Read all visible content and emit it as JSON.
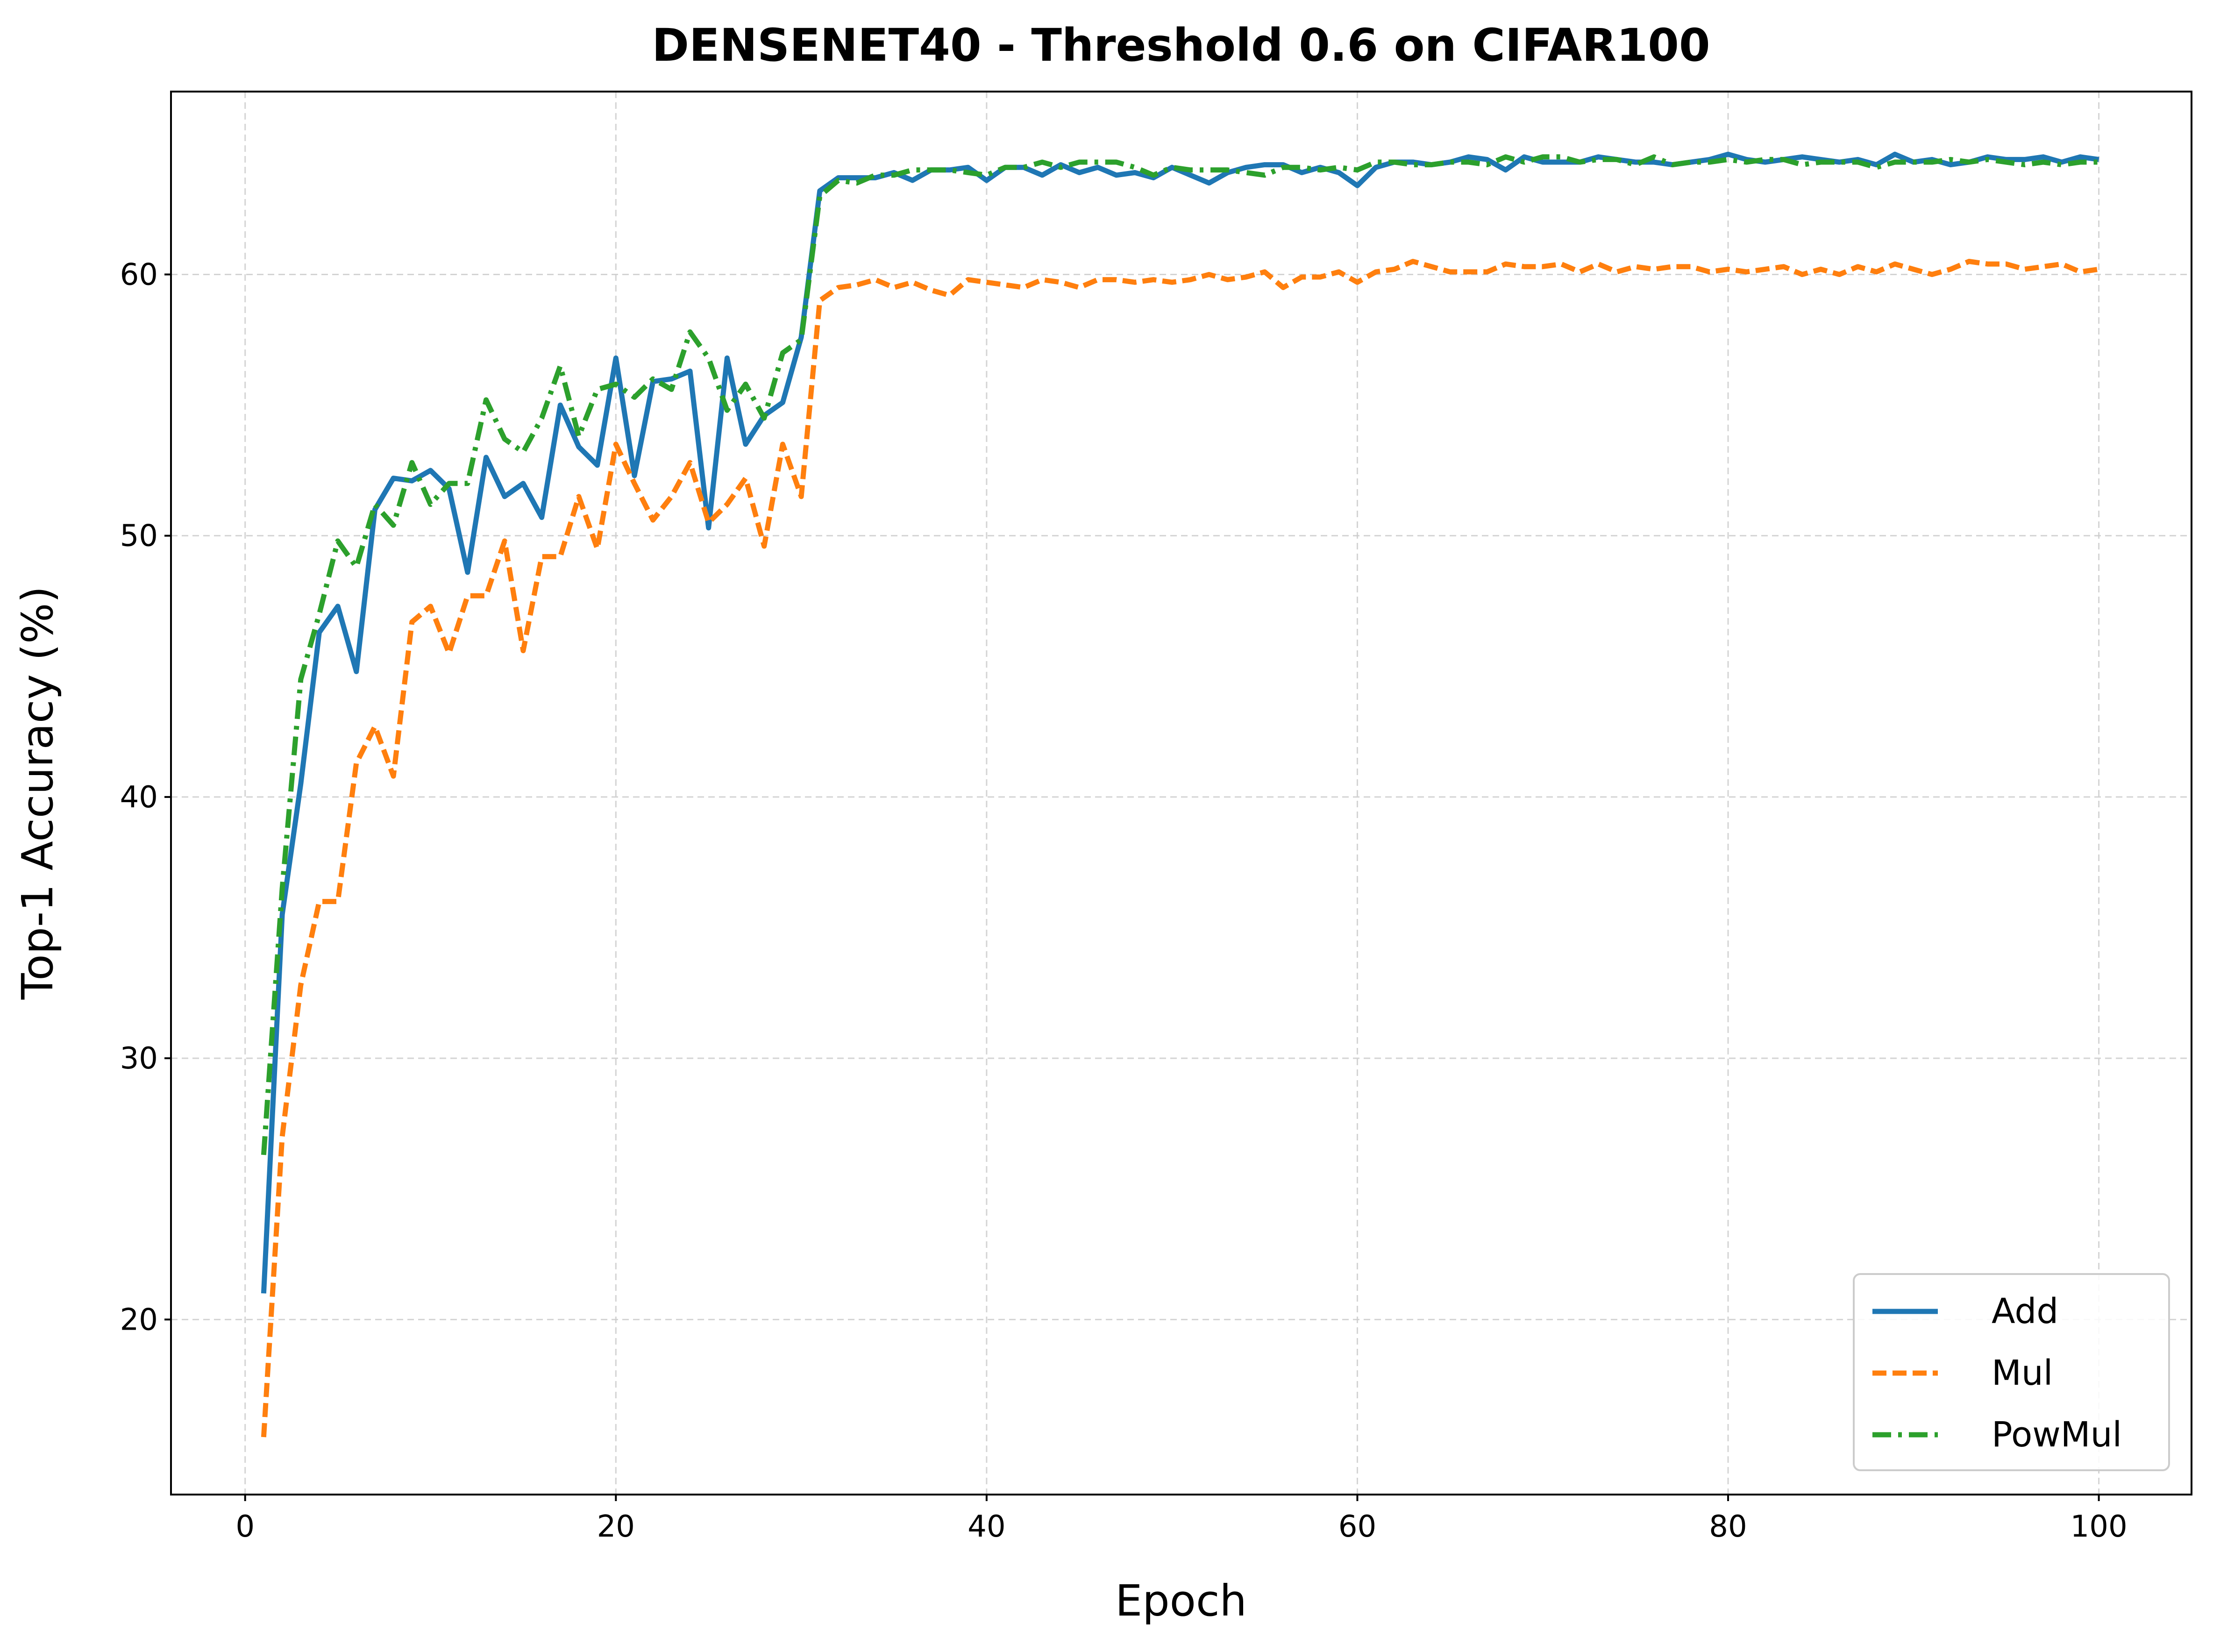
{
  "chart_data": {
    "type": "line",
    "title": "DENSENET40 - Threshold 0.6 on CIFAR100",
    "xlabel": "Epoch",
    "ylabel": "Top-1 Accuracy (%)",
    "xlim": [
      -4,
      105
    ],
    "ylim": [
      13.3,
      67.0
    ],
    "xticks": [
      0,
      20,
      40,
      60,
      80,
      100
    ],
    "yticks": [
      20,
      30,
      40,
      50,
      60
    ],
    "grid": true,
    "legend_position": "lower-right",
    "x": [
      1,
      2,
      3,
      4,
      5,
      6,
      7,
      8,
      9,
      10,
      11,
      12,
      13,
      14,
      15,
      16,
      17,
      18,
      19,
      20,
      21,
      22,
      23,
      24,
      25,
      26,
      27,
      28,
      29,
      30,
      31,
      32,
      33,
      34,
      35,
      36,
      37,
      38,
      39,
      40,
      41,
      42,
      43,
      44,
      45,
      46,
      47,
      48,
      49,
      50,
      51,
      52,
      53,
      54,
      55,
      56,
      57,
      58,
      59,
      60,
      61,
      62,
      63,
      64,
      65,
      66,
      67,
      68,
      69,
      70,
      71,
      72,
      73,
      74,
      75,
      76,
      77,
      78,
      79,
      80,
      81,
      82,
      83,
      84,
      85,
      86,
      87,
      88,
      89,
      90,
      91,
      92,
      93,
      94,
      95,
      96,
      97,
      98,
      99,
      100
    ],
    "series": [
      {
        "name": "Add",
        "color": "#1f77b4",
        "style": "solid",
        "values": [
          21.0,
          35.5,
          40.5,
          46.3,
          47.3,
          44.8,
          51.0,
          52.2,
          52.1,
          52.5,
          51.8,
          48.6,
          53.0,
          51.5,
          52.0,
          50.7,
          55.0,
          53.4,
          52.7,
          56.8,
          52.3,
          55.9,
          56.0,
          56.3,
          50.3,
          56.8,
          53.5,
          54.6,
          55.1,
          57.6,
          63.2,
          63.7,
          63.7,
          63.7,
          63.9,
          63.6,
          64.0,
          64.0,
          64.1,
          63.6,
          64.1,
          64.1,
          63.8,
          64.2,
          63.9,
          64.1,
          63.8,
          63.9,
          63.7,
          64.1,
          63.8,
          63.5,
          63.9,
          64.1,
          64.2,
          64.2,
          63.9,
          64.1,
          63.9,
          63.4,
          64.1,
          64.3,
          64.3,
          64.2,
          64.3,
          64.5,
          64.4,
          64.0,
          64.5,
          64.3,
          64.3,
          64.3,
          64.5,
          64.4,
          64.3,
          64.3,
          64.2,
          64.3,
          64.4,
          64.6,
          64.4,
          64.3,
          64.4,
          64.5,
          64.4,
          64.3,
          64.4,
          64.2,
          64.6,
          64.3,
          64.4,
          64.2,
          64.3,
          64.5,
          64.4,
          64.4,
          64.5,
          64.3,
          64.5,
          64.4
        ]
      },
      {
        "name": "Mul",
        "color": "#ff7f0e",
        "style": "dashed",
        "values": [
          15.5,
          27.0,
          32.8,
          36.0,
          36.0,
          41.3,
          42.7,
          40.8,
          46.7,
          47.3,
          45.5,
          47.7,
          47.7,
          49.8,
          45.6,
          49.2,
          49.2,
          51.5,
          49.5,
          53.5,
          52.0,
          50.6,
          51.5,
          52.8,
          50.5,
          51.2,
          52.2,
          49.6,
          53.5,
          51.5,
          59.0,
          59.5,
          59.6,
          59.8,
          59.5,
          59.7,
          59.4,
          59.2,
          59.8,
          59.7,
          59.6,
          59.5,
          59.8,
          59.7,
          59.5,
          59.8,
          59.8,
          59.7,
          59.8,
          59.7,
          59.8,
          60.0,
          59.8,
          59.9,
          60.1,
          59.5,
          59.9,
          59.9,
          60.1,
          59.7,
          60.1,
          60.2,
          60.5,
          60.3,
          60.1,
          60.1,
          60.1,
          60.4,
          60.3,
          60.3,
          60.4,
          60.1,
          60.4,
          60.1,
          60.3,
          60.2,
          60.3,
          60.3,
          60.1,
          60.2,
          60.1,
          60.2,
          60.3,
          60.0,
          60.2,
          60.0,
          60.3,
          60.1,
          60.4,
          60.2,
          60.0,
          60.2,
          60.5,
          60.4,
          60.4,
          60.2,
          60.3,
          60.4,
          60.1,
          60.2
        ]
      },
      {
        "name": "PowMul",
        "color": "#2ca02c",
        "style": "dashdot",
        "values": [
          26.3,
          36.5,
          44.5,
          47.0,
          49.8,
          48.8,
          51.2,
          50.4,
          52.8,
          51.2,
          52.0,
          52.0,
          55.2,
          53.7,
          53.2,
          54.5,
          56.5,
          53.8,
          55.6,
          55.8,
          55.3,
          56.0,
          55.6,
          57.8,
          56.8,
          54.8,
          55.8,
          54.5,
          57.0,
          57.5,
          63.0,
          63.6,
          63.5,
          63.8,
          63.8,
          64.0,
          64.0,
          64.0,
          63.9,
          63.8,
          64.1,
          64.1,
          64.3,
          64.1,
          64.3,
          64.3,
          64.3,
          64.1,
          63.8,
          64.1,
          64.0,
          64.0,
          64.0,
          63.9,
          63.8,
          64.1,
          64.1,
          64.0,
          64.1,
          64.0,
          64.3,
          64.3,
          64.2,
          64.2,
          64.3,
          64.3,
          64.2,
          64.5,
          64.3,
          64.5,
          64.5,
          64.3,
          64.4,
          64.4,
          64.2,
          64.5,
          64.2,
          64.3,
          64.3,
          64.4,
          64.3,
          64.4,
          64.4,
          64.2,
          64.3,
          64.3,
          64.3,
          64.1,
          64.3,
          64.3,
          64.3,
          64.4,
          64.3,
          64.4,
          64.3,
          64.2,
          64.3,
          64.2,
          64.3,
          64.3
        ]
      }
    ]
  }
}
